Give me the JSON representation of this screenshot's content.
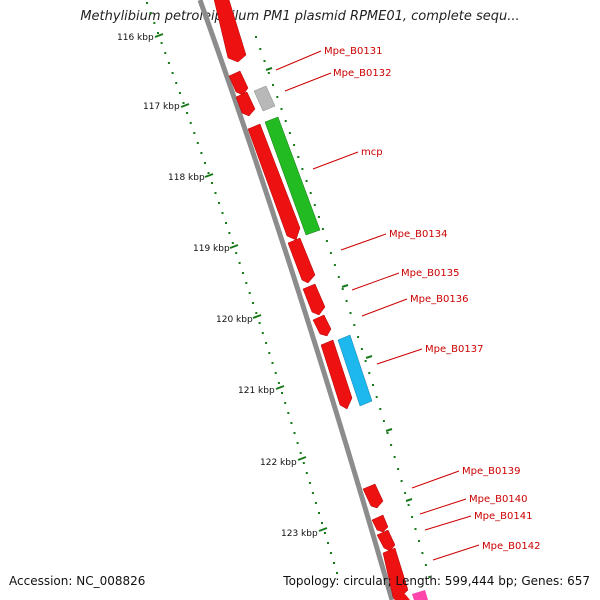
{
  "title": "Methylibium petroleiphilum PM1 plasmid RPME01, complete sequ...",
  "accession": "Accession: NC_008826",
  "summary": "Topology: circular; Length: 599,444 bp; Genes: 657",
  "ruler": [
    "116 kbp",
    "117 kbp",
    "118 kbp",
    "119 kbp",
    "120 kbp",
    "121 kbp",
    "122 kbp",
    "123 kbp"
  ],
  "colors": {
    "backbone": "#8c8c8c",
    "cds": "#ee1111",
    "rRNA_like": "#22bb22",
    "tRNA_like": "#1cb8ee",
    "pseudo": "#b8b8b8",
    "other": "#ff44aa",
    "tick": "#1a7a1a",
    "label": "#cc0000"
  },
  "genes": [
    "Mpe_B0131",
    "Mpe_B0132",
    "mcp",
    "Mpe_B0134",
    "Mpe_B0135",
    "Mpe_B0136",
    "Mpe_B0137",
    "Mpe_B0139",
    "Mpe_B0140",
    "Mpe_B0141",
    "Mpe_B0142"
  ]
}
